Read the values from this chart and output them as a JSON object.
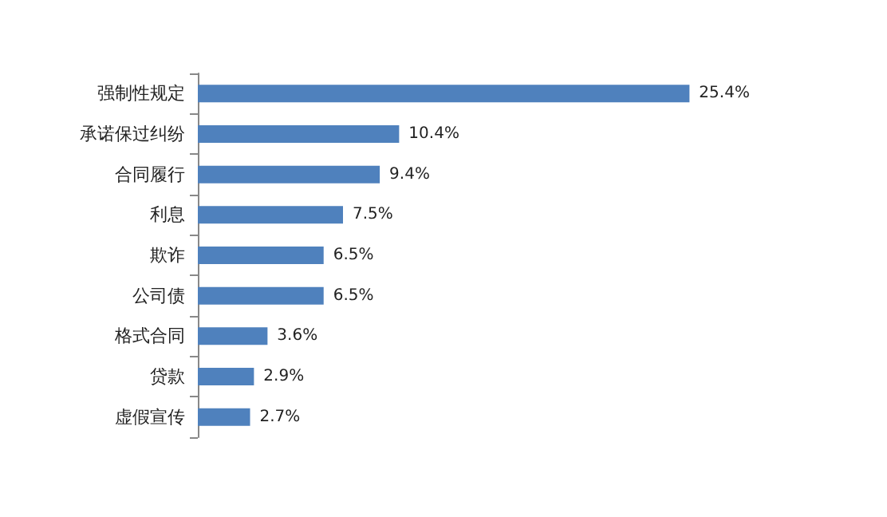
{
  "chart_data": {
    "type": "bar",
    "orientation": "horizontal",
    "categories": [
      "强制性规定",
      "承诺保过纠纷",
      "合同履行",
      "利息",
      "欺诈",
      "公司债",
      "格式合同",
      "贷款",
      "虚假宣传"
    ],
    "values": [
      25.4,
      10.4,
      9.4,
      7.5,
      6.5,
      6.5,
      3.6,
      2.9,
      2.7
    ],
    "value_labels": [
      "25.4%",
      "10.4%",
      "9.4%",
      "7.5%",
      "6.5%",
      "6.5%",
      "3.6%",
      "2.9%",
      "2.7%"
    ],
    "color": "#4f81bd"
  }
}
